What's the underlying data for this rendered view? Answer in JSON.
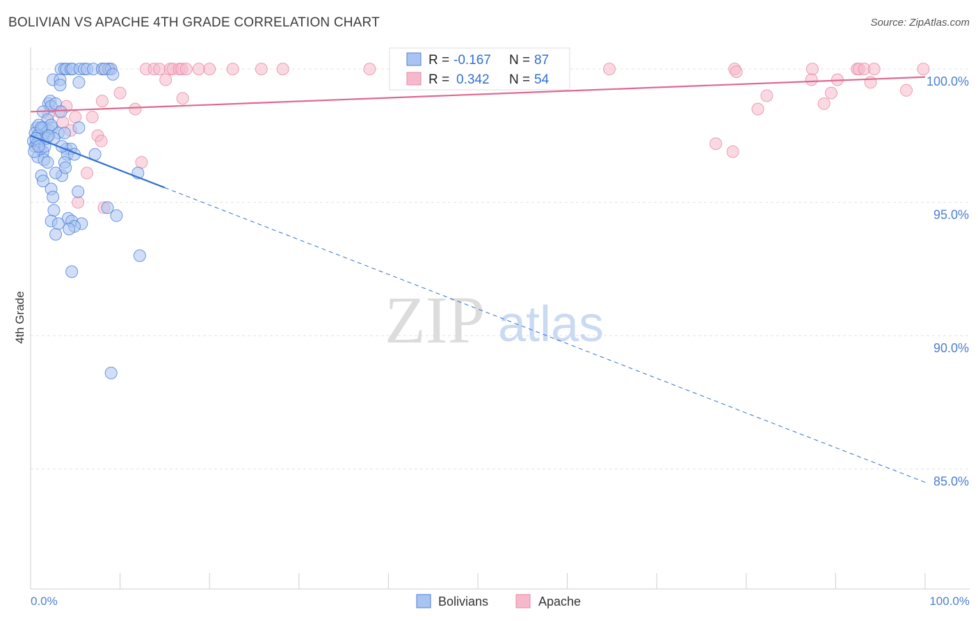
{
  "header": {
    "title": "BOLIVIAN VS APACHE 4TH GRADE CORRELATION CHART",
    "source": "Source: ZipAtlas.com"
  },
  "watermark": {
    "zip": "ZIP",
    "atlas": "atlas"
  },
  "colors": {
    "blue_fill": "#a9c4f0",
    "blue_stroke": "#4d7fd8",
    "blue_line": "#2f6fd0",
    "pink_fill": "#f6b9cb",
    "pink_stroke": "#e68aa8",
    "pink_line": "#e0678f",
    "tick_label": "#4a7fd1",
    "grid": "#e3e3e3"
  },
  "chart_data": {
    "type": "scatter",
    "title": "BOLIVIAN VS APACHE 4TH GRADE CORRELATION CHART",
    "xlabel": "",
    "ylabel": "4th Grade",
    "xlim": [
      0,
      100
    ],
    "ylim": [
      80.5,
      100.5
    ],
    "x_tick_labels": [
      "0.0%",
      "100.0%"
    ],
    "y_ticks": [
      {
        "value": 100,
        "label": "100.0%"
      },
      {
        "value": 95,
        "label": "95.0%"
      },
      {
        "value": 90,
        "label": "90.0%"
      },
      {
        "value": 85,
        "label": "85.0%"
      }
    ],
    "grid": true,
    "legend_position": "top-center",
    "series": [
      {
        "name": "Bolivians",
        "color": "#a9c4f0",
        "stats": {
          "r_label": "R =",
          "r_value": "-0.167",
          "n_label": "N =",
          "n_value": "87"
        },
        "trend": {
          "x_start": 0,
          "y_start": 97.5,
          "x_solid_end": 15,
          "x_end": 100,
          "y_end": 84.5
        },
        "points": [
          [
            3.4,
            100
          ],
          [
            3.8,
            100
          ],
          [
            4,
            100
          ],
          [
            4.5,
            100
          ],
          [
            4.7,
            100
          ],
          [
            5.5,
            100
          ],
          [
            6,
            100
          ],
          [
            6.3,
            100
          ],
          [
            7,
            100
          ],
          [
            8,
            100
          ],
          [
            8.7,
            100
          ],
          [
            9,
            100
          ],
          [
            8.3,
            100
          ],
          [
            2.5,
            99.6
          ],
          [
            3.3,
            99.6
          ],
          [
            3.3,
            99.4
          ],
          [
            5.4,
            99.5
          ],
          [
            9.2,
            99.8
          ],
          [
            2,
            98.7
          ],
          [
            2.2,
            98.8
          ],
          [
            2.3,
            98.6
          ],
          [
            2.8,
            98.7
          ],
          [
            1.4,
            98.4
          ],
          [
            1.9,
            98.1
          ],
          [
            3.4,
            98.4
          ],
          [
            0.7,
            97.8
          ],
          [
            0.9,
            97.9
          ],
          [
            1.1,
            97.7
          ],
          [
            1.3,
            97.5
          ],
          [
            1.5,
            97.8
          ],
          [
            1.7,
            97.6
          ],
          [
            2,
            97.7
          ],
          [
            2.4,
            97.8
          ],
          [
            3.1,
            97.6
          ],
          [
            3.8,
            97.6
          ],
          [
            5.4,
            97.8
          ],
          [
            2.3,
            97.9
          ],
          [
            0.5,
            97.6
          ],
          [
            0.8,
            97.5
          ],
          [
            0.3,
            97.3
          ],
          [
            0.5,
            97.1
          ],
          [
            0.7,
            97.2
          ],
          [
            0.9,
            97.3
          ],
          [
            1.1,
            97
          ],
          [
            1.4,
            96.9
          ],
          [
            1.6,
            97.1
          ],
          [
            0.8,
            96.7
          ],
          [
            0.4,
            96.9
          ],
          [
            4,
            97
          ],
          [
            4.5,
            97
          ],
          [
            4.1,
            96.8
          ],
          [
            3.8,
            96.5
          ],
          [
            4.9,
            96.8
          ],
          [
            7.2,
            96.8
          ],
          [
            1.5,
            96.6
          ],
          [
            1.9,
            96.5
          ],
          [
            1.2,
            96
          ],
          [
            3.5,
            96
          ],
          [
            2.8,
            96.1
          ],
          [
            12,
            96.1
          ],
          [
            1.4,
            95.8
          ],
          [
            2.3,
            95.5
          ],
          [
            5.3,
            95.4
          ],
          [
            2.5,
            95.2
          ],
          [
            8.6,
            94.8
          ],
          [
            2.6,
            94.7
          ],
          [
            9.6,
            94.5
          ],
          [
            2.3,
            94.3
          ],
          [
            4.2,
            94.4
          ],
          [
            3.1,
            94.2
          ],
          [
            4.6,
            94.3
          ],
          [
            5.7,
            94.2
          ],
          [
            4.9,
            94.1
          ],
          [
            4.3,
            94
          ],
          [
            2.8,
            93.8
          ],
          [
            12.2,
            93
          ],
          [
            4.6,
            92.4
          ],
          [
            9,
            88.6
          ],
          [
            1.1,
            97.4
          ],
          [
            1.8,
            97.4
          ],
          [
            0.6,
            97.4
          ],
          [
            3.5,
            97.1
          ],
          [
            2.6,
            97.4
          ],
          [
            1.2,
            97.8
          ],
          [
            0.9,
            97.1
          ],
          [
            3.9,
            96.3
          ],
          [
            2,
            97.5
          ]
        ]
      },
      {
        "name": "Apache",
        "color": "#f6b9cb",
        "stats": {
          "r_label": "R =",
          "r_value": "0.342",
          "n_label": "N =",
          "n_value": "54"
        },
        "trend": {
          "x_start": 0,
          "y_start": 98.4,
          "x_end": 100,
          "y_end": 99.7
        },
        "points": [
          [
            8,
            100
          ],
          [
            8.8,
            100
          ],
          [
            12.9,
            100
          ],
          [
            13.8,
            100
          ],
          [
            14.4,
            100
          ],
          [
            15.6,
            100
          ],
          [
            15.9,
            100
          ],
          [
            16.6,
            100
          ],
          [
            16.9,
            100
          ],
          [
            17.4,
            100
          ],
          [
            18.8,
            100
          ],
          [
            20,
            100
          ],
          [
            22.6,
            100
          ],
          [
            25.8,
            100
          ],
          [
            28.2,
            100
          ],
          [
            37.9,
            100
          ],
          [
            41.1,
            100
          ],
          [
            64.7,
            100
          ],
          [
            78.7,
            100
          ],
          [
            87.4,
            100
          ],
          [
            92.4,
            100
          ],
          [
            92.6,
            100
          ],
          [
            93.2,
            100
          ],
          [
            94.3,
            100
          ],
          [
            99.8,
            100
          ],
          [
            78.9,
            99.9
          ],
          [
            15.1,
            99.6
          ],
          [
            87.3,
            99.6
          ],
          [
            90.2,
            99.6
          ],
          [
            93.9,
            99.5
          ],
          [
            10,
            99.1
          ],
          [
            17,
            98.9
          ],
          [
            8,
            98.8
          ],
          [
            89.5,
            99.1
          ],
          [
            82.3,
            99
          ],
          [
            97.9,
            99.2
          ],
          [
            88.7,
            98.7
          ],
          [
            11.7,
            98.5
          ],
          [
            81.3,
            98.5
          ],
          [
            4,
            98.6
          ],
          [
            6.9,
            98.2
          ],
          [
            5,
            98.2
          ],
          [
            3.6,
            98
          ],
          [
            4.5,
            97.7
          ],
          [
            7.5,
            97.5
          ],
          [
            7.9,
            97.3
          ],
          [
            76.6,
            97.2
          ],
          [
            78.5,
            96.9
          ],
          [
            12.4,
            96.5
          ],
          [
            6.3,
            96.1
          ],
          [
            5.3,
            95
          ],
          [
            8.2,
            94.8
          ],
          [
            3.2,
            98.4
          ],
          [
            2,
            98.3
          ]
        ]
      }
    ]
  }
}
